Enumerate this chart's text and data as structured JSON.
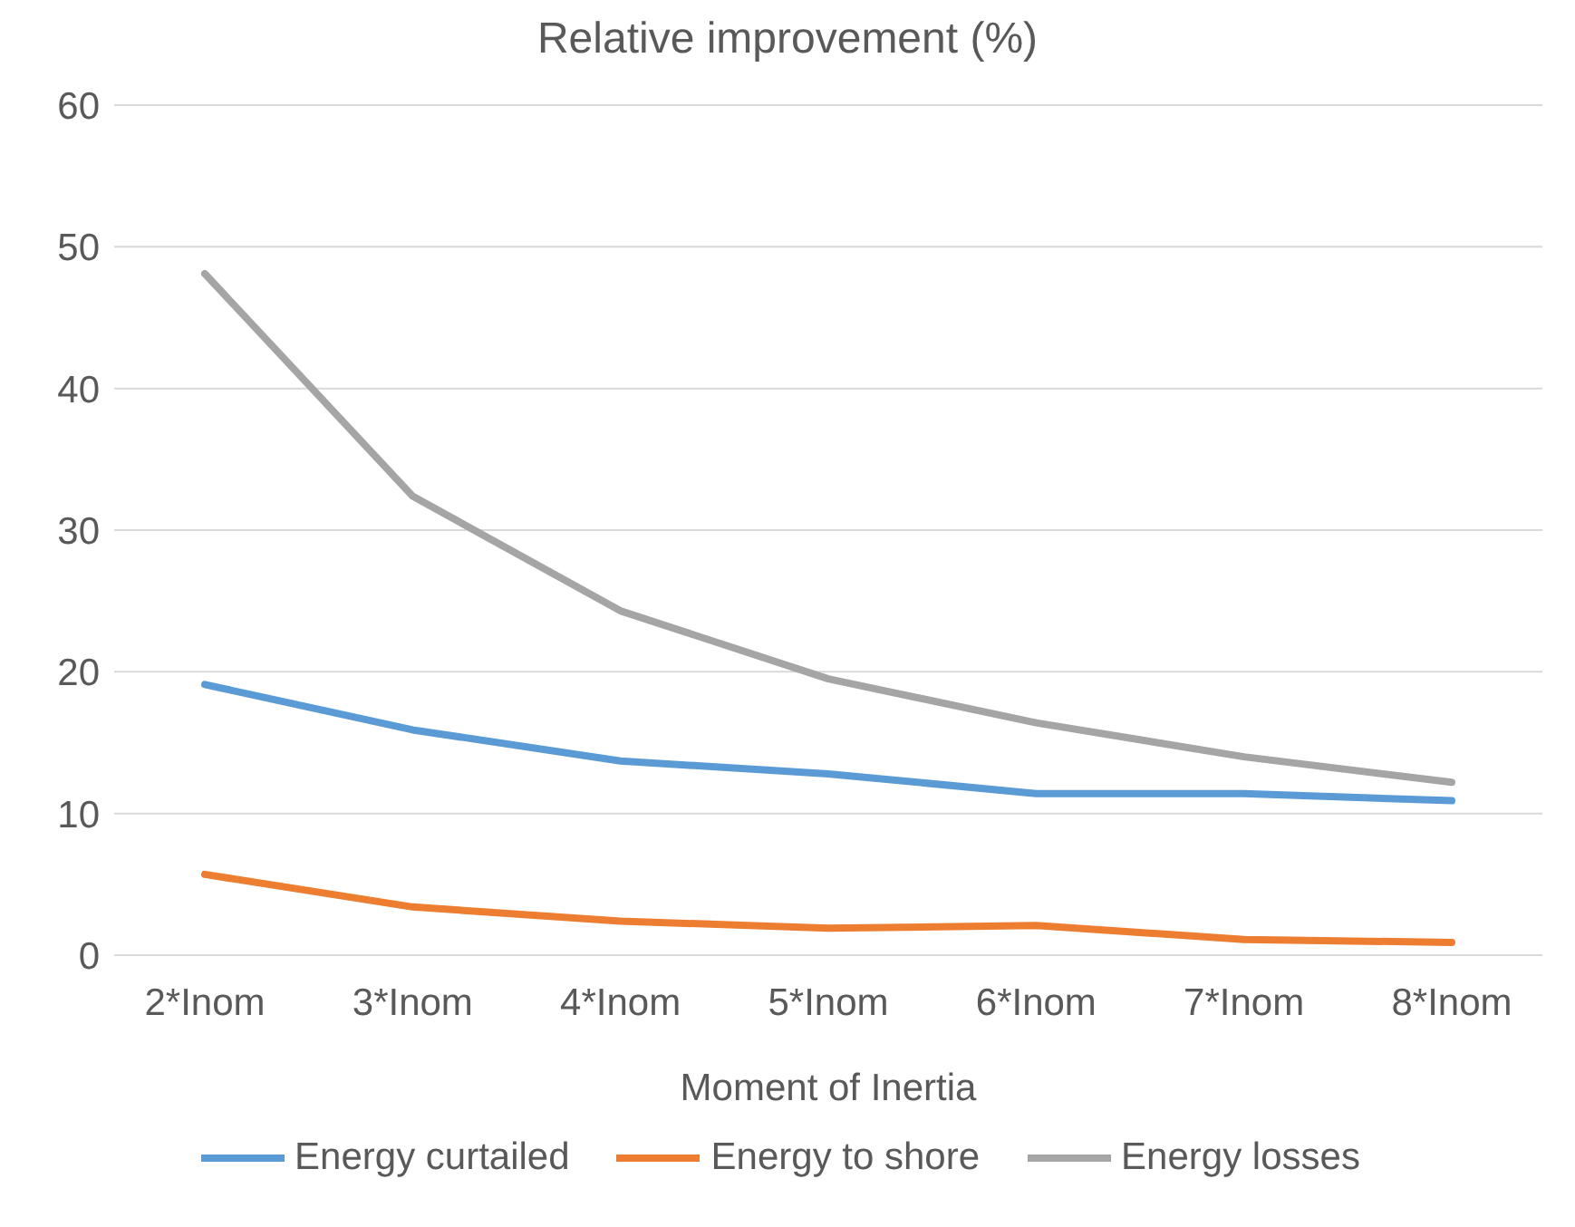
{
  "chart_data": {
    "type": "line",
    "title": "Relative improvement  (%)",
    "xlabel": "Moment of Inertia",
    "categories": [
      "2*Inom",
      "3*Inom",
      "4*Inom",
      "5*Inom",
      "6*Inom",
      "7*Inom",
      "8*Inom"
    ],
    "series": [
      {
        "name": "Energy curtailed",
        "color": "#5b9bd5",
        "values": [
          19.1,
          15.9,
          13.7,
          12.8,
          11.4,
          11.4,
          10.9
        ]
      },
      {
        "name": "Energy to shore",
        "color": "#ed7d31",
        "values": [
          5.7,
          3.4,
          2.4,
          1.9,
          2.1,
          1.1,
          0.9
        ]
      },
      {
        "name": "Energy losses",
        "color": "#a5a5a5",
        "values": [
          48.1,
          32.4,
          24.3,
          19.5,
          16.4,
          14.0,
          12.2
        ]
      }
    ],
    "ylim": [
      0,
      60
    ],
    "yticks": [
      0,
      10,
      20,
      30,
      40,
      50,
      60
    ],
    "grid": "y",
    "legend": "bottom",
    "marker": "none",
    "line_style": "solid"
  }
}
